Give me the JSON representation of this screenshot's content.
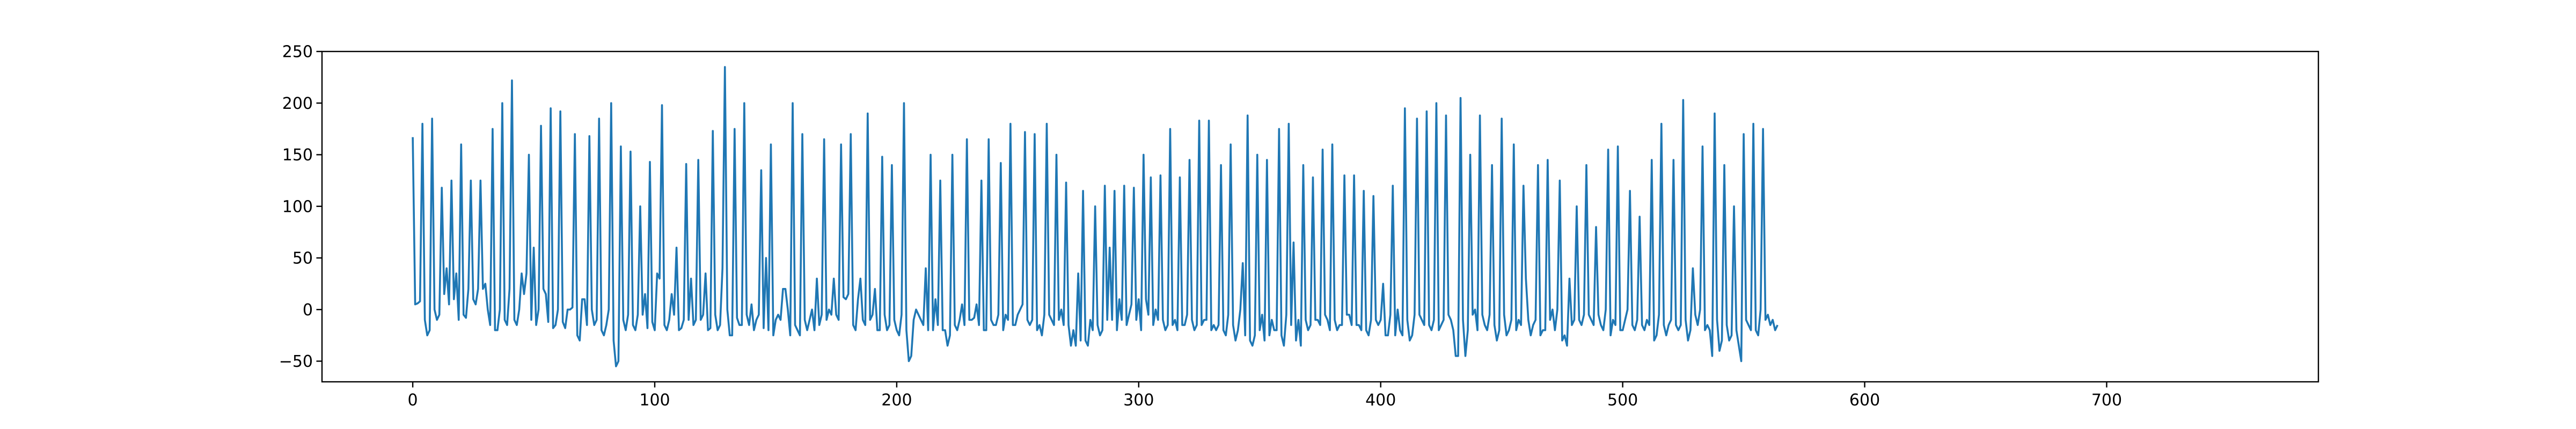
{
  "chart_data": {
    "type": "line",
    "title": "",
    "xlabel": "",
    "ylabel": "",
    "xlim": [
      -37.5,
      787.5
    ],
    "ylim": [
      -70,
      250
    ],
    "xticks": [
      0,
      100,
      200,
      300,
      400,
      500,
      600,
      700
    ],
    "yticks": [
      -50,
      0,
      50,
      100,
      150,
      200,
      250
    ],
    "xtick_labels": [
      "0",
      "100",
      "200",
      "300",
      "400",
      "500",
      "600",
      "700"
    ],
    "ytick_labels": [
      "−50",
      "0",
      "50",
      "100",
      "150",
      "200",
      "250"
    ],
    "grid": false,
    "legend": "none",
    "series": [
      {
        "color": "#1f77b4",
        "x_start": 0,
        "x_step": 1,
        "values": [
          167,
          5,
          6,
          8,
          180,
          -10,
          -25,
          -20,
          185,
          0,
          -10,
          -5,
          118,
          15,
          40,
          5,
          125,
          10,
          35,
          -10,
          160,
          -5,
          -8,
          20,
          125,
          10,
          5,
          20,
          125,
          20,
          25,
          0,
          -15,
          175,
          -20,
          -20,
          0,
          200,
          -10,
          -15,
          20,
          222,
          -10,
          -15,
          0,
          35,
          15,
          35,
          150,
          -10,
          60,
          -15,
          0,
          178,
          20,
          15,
          -12,
          195,
          -18,
          -15,
          0,
          192,
          -12,
          -18,
          0,
          0,
          2,
          170,
          -25,
          -30,
          10,
          10,
          -15,
          168,
          0,
          -15,
          -10,
          185,
          -20,
          -25,
          -15,
          0,
          200,
          -30,
          -55,
          -50,
          158,
          -10,
          -20,
          -5,
          153,
          -15,
          -20,
          -5,
          100,
          -5,
          15,
          -18,
          143,
          -12,
          -20,
          35,
          30,
          198,
          -15,
          -20,
          -10,
          15,
          -5,
          60,
          -20,
          -18,
          -10,
          141,
          -10,
          30,
          -15,
          -10,
          145,
          -10,
          -5,
          35,
          -20,
          -18,
          173,
          -5,
          -20,
          -15,
          40,
          235,
          0,
          -25,
          -25,
          175,
          -8,
          -15,
          -15,
          200,
          -5,
          -15,
          5,
          -20,
          -10,
          -5,
          135,
          -18,
          50,
          -20,
          160,
          -25,
          -10,
          -5,
          -10,
          20,
          20,
          0,
          -25,
          200,
          -15,
          -20,
          -25,
          170,
          -10,
          -20,
          -10,
          0,
          -20,
          30,
          -15,
          -5,
          165,
          -10,
          0,
          -5,
          30,
          -5,
          -10,
          160,
          12,
          10,
          15,
          170,
          -15,
          -20,
          10,
          30,
          -10,
          -15,
          190,
          -10,
          -5,
          20,
          -20,
          -20,
          148,
          -5,
          -20,
          -15,
          140,
          -10,
          -20,
          -25,
          -5,
          200,
          -20,
          -50,
          -45,
          -10,
          0,
          -5,
          -10,
          -15,
          40,
          -20,
          150,
          -20,
          10,
          -15,
          125,
          -20,
          -20,
          -35,
          -25,
          150,
          -15,
          -20,
          -10,
          5,
          -15,
          165,
          -10,
          -10,
          -8,
          5,
          -15,
          125,
          -20,
          -20,
          165,
          -10,
          -15,
          -15,
          -5,
          142,
          -20,
          -5,
          -10,
          180,
          -15,
          -15,
          -5,
          0,
          5,
          172,
          -10,
          -15,
          -10,
          170,
          -20,
          -15,
          -25,
          -5,
          180,
          -5,
          -10,
          -15,
          150,
          -10,
          0,
          -15,
          123,
          -15,
          -35,
          -20,
          -35,
          35,
          -30,
          115,
          -30,
          -35,
          -10,
          -20,
          100,
          -15,
          -25,
          -20,
          120,
          -10,
          60,
          -10,
          115,
          -20,
          10,
          -10,
          120,
          -15,
          -5,
          5,
          118,
          -10,
          10,
          -20,
          150,
          10,
          -5,
          128,
          -15,
          0,
          -10,
          130,
          -10,
          -20,
          -15,
          175,
          -15,
          -10,
          -20,
          128,
          -15,
          -15,
          -5,
          145,
          -10,
          -20,
          -15,
          183,
          -15,
          -10,
          -10,
          183,
          -20,
          -15,
          -20,
          -15,
          140,
          -20,
          -25,
          -5,
          160,
          -15,
          -30,
          -20,
          0,
          45,
          -25,
          188,
          -30,
          -35,
          -25,
          150,
          -20,
          -5,
          -30,
          145,
          -25,
          -10,
          -20,
          -20,
          175,
          -25,
          -35,
          -5,
          180,
          -15,
          65,
          -30,
          -10,
          -35,
          140,
          -10,
          -20,
          -15,
          128,
          -10,
          -10,
          -15,
          155,
          -5,
          -10,
          -20,
          160,
          -10,
          -20,
          -15,
          -15,
          130,
          -5,
          -5,
          -15,
          130,
          -15,
          -15,
          -20,
          115,
          -20,
          -25,
          -10,
          110,
          -10,
          -15,
          -10,
          25,
          -25,
          -25,
          -5,
          120,
          -25,
          0,
          -20,
          -25,
          195,
          -10,
          -30,
          -25,
          -5,
          185,
          -5,
          -10,
          -15,
          192,
          -15,
          -20,
          -10,
          200,
          -20,
          -15,
          -10,
          188,
          -5,
          -10,
          -20,
          -45,
          -45,
          205,
          -10,
          -45,
          -20,
          150,
          -5,
          0,
          -20,
          188,
          -5,
          -15,
          -20,
          -5,
          140,
          -15,
          -30,
          -20,
          185,
          -5,
          -25,
          -20,
          -10,
          160,
          -20,
          -10,
          -15,
          120,
          30,
          -10,
          -25,
          -15,
          -10,
          140,
          -25,
          -20,
          -20,
          145,
          -10,
          0,
          -20,
          0,
          125,
          -30,
          -25,
          -35,
          30,
          -15,
          -10,
          100,
          -10,
          -15,
          -5,
          140,
          -5,
          -10,
          -15,
          80,
          -5,
          -15,
          -20,
          0,
          155,
          -25,
          -10,
          -15,
          158,
          -20,
          -20,
          -10,
          0,
          115,
          -15,
          -20,
          -10,
          90,
          -15,
          -20,
          -10,
          -15,
          145,
          -30,
          -25,
          -5,
          180,
          -15,
          -25,
          -15,
          -10,
          145,
          -15,
          -20,
          -15,
          203,
          -10,
          -30,
          -20,
          40,
          -5,
          -15,
          0,
          158,
          -20,
          -15,
          -20,
          -45,
          190,
          -10,
          -40,
          -30,
          140,
          -15,
          -30,
          -25,
          100,
          -20,
          -35,
          -50,
          170,
          -10,
          -15,
          -20,
          180,
          -20,
          -25,
          0,
          175,
          -10,
          -5,
          -15,
          -10,
          -20,
          -15
        ]
      }
    ]
  }
}
